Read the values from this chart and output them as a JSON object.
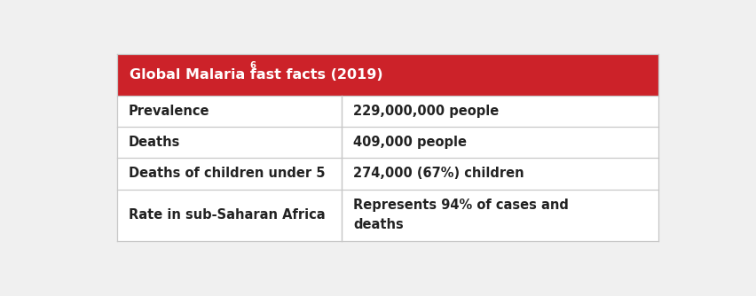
{
  "title": "Global Malaria fast facts (2019)",
  "title_superscript": "6",
  "header_bg": "#cc2229",
  "header_text_color": "#ffffff",
  "border_color": "#c8c8c8",
  "text_color": "#222222",
  "outer_bg": "#f0f0f0",
  "table_bg": "#ffffff",
  "rows": [
    {
      "label": "Prevalence",
      "value": "229,000,000 people"
    },
    {
      "label": "Deaths",
      "value": "409,000 people"
    },
    {
      "label": "Deaths of children under 5",
      "value": "274,000 (67%) children"
    },
    {
      "label": "Rate in sub-Saharan Africa",
      "value": "Represents 94% of cases and\ndeaths"
    }
  ],
  "col_split": 0.415,
  "header_fontsize": 11.5,
  "cell_fontsize": 10.5,
  "fig_width": 8.52,
  "fig_height": 3.34,
  "dpi": 100
}
